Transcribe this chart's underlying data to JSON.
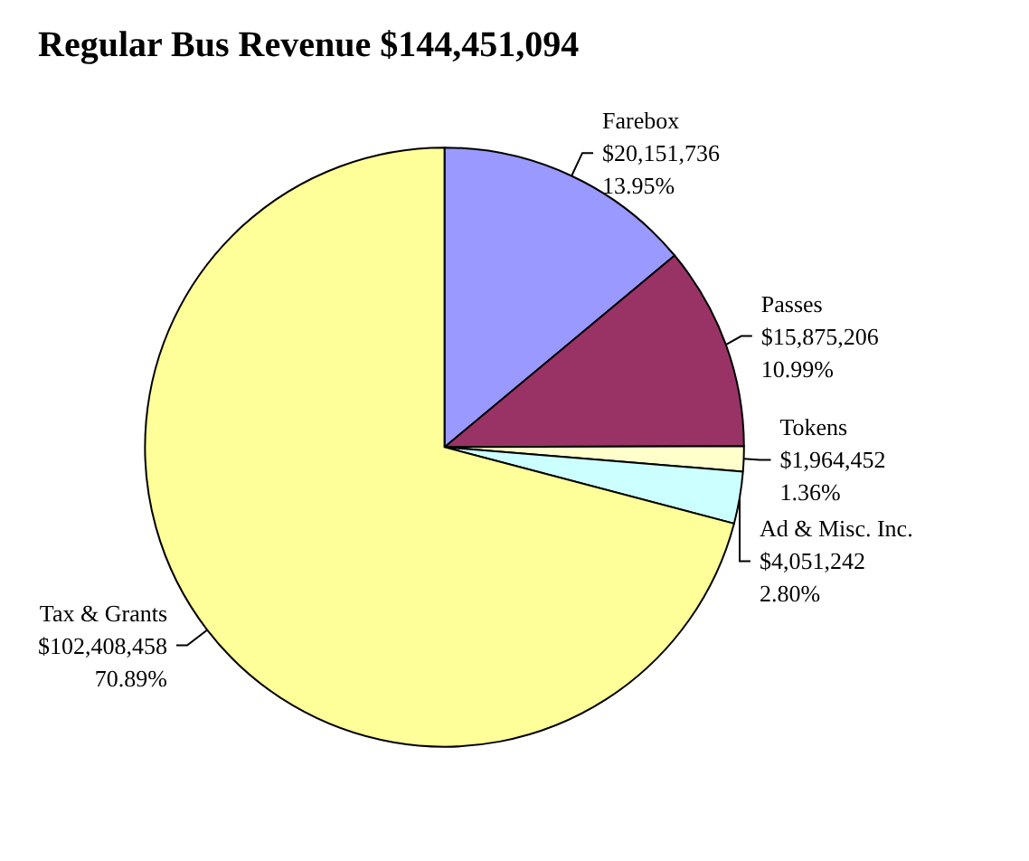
{
  "chart_data": {
    "type": "pie",
    "title": "Regular Bus Revenue $144,451,094",
    "categories": [
      "Farebox",
      "Passes",
      "Tokens",
      "Ad & Misc. Inc.",
      "Tax & Grants"
    ],
    "values": [
      20151736,
      15875206,
      1964452,
      4051242,
      102408458
    ],
    "value_labels": [
      "$20,151,736\n13.95%",
      "$15,875,206\n10.99%",
      "$1,964,452\n1.36%",
      "$4,051,242\n2.80%",
      "$102,408,458\n70.89%"
    ],
    "colors": [
      "#9999ff",
      "#993366",
      "#ffffcc",
      "#ccffff",
      "#ffff99"
    ],
    "legend": false
  }
}
